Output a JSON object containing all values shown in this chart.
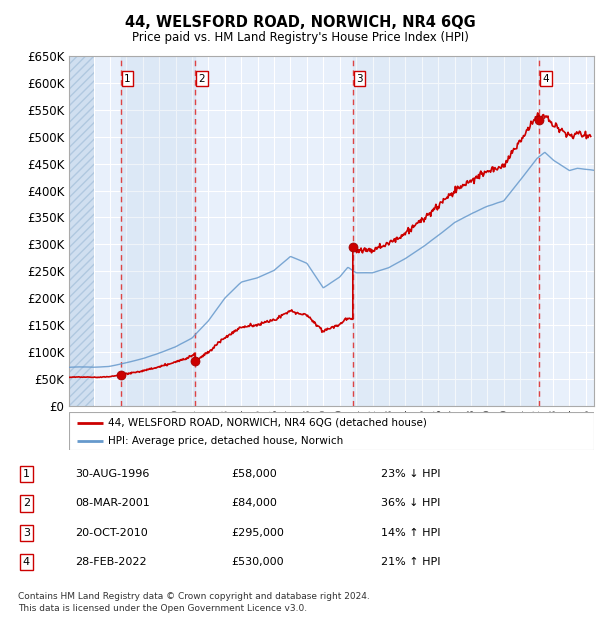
{
  "title": "44, WELSFORD ROAD, NORWICH, NR4 6QG",
  "subtitle": "Price paid vs. HM Land Registry's House Price Index (HPI)",
  "ylim": [
    0,
    650000
  ],
  "xlim_start": 1993.5,
  "xlim_end": 2025.5,
  "yticks": [
    0,
    50000,
    100000,
    150000,
    200000,
    250000,
    300000,
    350000,
    400000,
    450000,
    500000,
    550000,
    600000,
    650000
  ],
  "ytick_labels": [
    "£0",
    "£50K",
    "£100K",
    "£150K",
    "£200K",
    "£250K",
    "£300K",
    "£350K",
    "£400K",
    "£450K",
    "£500K",
    "£550K",
    "£600K",
    "£650K"
  ],
  "background_color": "#dce9f8",
  "plot_bg_color": "#e8f0fb",
  "grid_color": "#c8d8ee",
  "sale_points": [
    {
      "num": 1,
      "year": 1996.66,
      "price": 58000,
      "date": "30-AUG-1996",
      "price_str": "£58,000",
      "pct": "23% ↓ HPI"
    },
    {
      "num": 2,
      "year": 2001.18,
      "price": 84000,
      "date": "08-MAR-2001",
      "price_str": "£84,000",
      "pct": "36% ↓ HPI"
    },
    {
      "num": 3,
      "year": 2010.8,
      "price": 295000,
      "date": "20-OCT-2010",
      "price_str": "£295,000",
      "pct": "14% ↑ HPI"
    },
    {
      "num": 4,
      "year": 2022.16,
      "price": 530000,
      "date": "28-FEB-2022",
      "price_str": "£530,000",
      "pct": "21% ↑ HPI"
    }
  ],
  "legend_label_red": "44, WELSFORD ROAD, NORWICH, NR4 6QG (detached house)",
  "legend_label_blue": "HPI: Average price, detached house, Norwich",
  "footer": "Contains HM Land Registry data © Crown copyright and database right 2024.\nThis data is licensed under the Open Government Licence v3.0.",
  "red_line_color": "#cc0000",
  "blue_line_color": "#6699cc",
  "dot_color": "#cc0000",
  "vline_color": "#dd4444"
}
